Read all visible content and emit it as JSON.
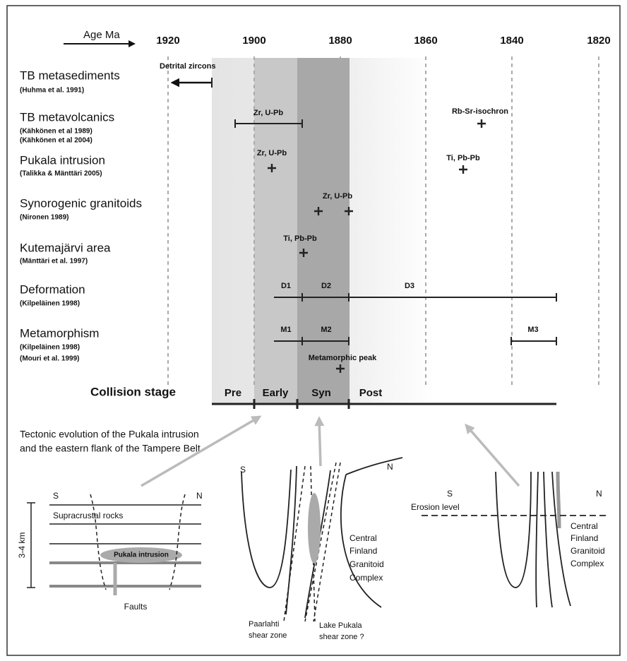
{
  "header": {
    "axis_label": "Age Ma",
    "ticks": [
      1920,
      1900,
      1880,
      1860,
      1840,
      1820
    ]
  },
  "rows": [
    {
      "title": "TB metasediments",
      "refs": [
        "(Huhma et al. 1991)"
      ]
    },
    {
      "title": "TB metavolcanics",
      "refs": [
        "(Kähkönen et al 1989)",
        "(Kähkönen et al 2004)"
      ]
    },
    {
      "title": "Pukala intrusion",
      "refs": [
        "(Talikka & Mänttäri 2005)"
      ]
    },
    {
      "title": "Synorogenic granitoids",
      "refs": [
        "(Nironen 1989)"
      ]
    },
    {
      "title": "Kutemajärvi area",
      "refs": [
        "(Mänttäri et al. 1997)"
      ]
    },
    {
      "title": "Deformation",
      "refs": [
        "(Kilpeläinen 1998)"
      ]
    },
    {
      "title": "Metamorphism",
      "refs": [
        "(Kilpeläinen 1998)",
        "(Mouri et al. 1999)"
      ]
    }
  ],
  "annotations": {
    "detrital_zircons": "Detrital zircons",
    "zr_upb_1": "Zr, U-Pb",
    "rb_sr": "Rb-Sr-isochron",
    "zr_upb_2": "Zr, U-Pb",
    "ti_pbpb_1": "Ti, Pb-Pb",
    "zr_upb_3": "Zr, U-Pb",
    "ti_pbpb_2": "Ti, Pb-Pb",
    "d1": "D1",
    "d2": "D2",
    "d3": "D3",
    "m1": "M1",
    "m2": "M2",
    "m3": "M3",
    "metamorphic_peak": "Metamorphic peak"
  },
  "collision": {
    "title": "Collision stage",
    "stages": [
      "Pre",
      "Early",
      "Syn",
      "Post"
    ]
  },
  "tectonic": {
    "title": [
      "Tectonic evolution of the Pukala intrusion",
      "and the eastern flank of the Tampere Belt"
    ]
  },
  "panels": [
    {
      "s": "S",
      "n": "N",
      "labels": [
        "Supracrustal rocks",
        "Pukala intrusion",
        "3-4 km",
        "Faults"
      ]
    },
    {
      "s": "S",
      "n": "N",
      "labels": [
        "Central",
        "Finland",
        "Granitoid",
        "Complex",
        "Paarlahti",
        "shear zone",
        "Lake Pukala",
        "shear zone ?"
      ]
    },
    {
      "s": "S",
      "n": "N",
      "labels": [
        "Erosion level",
        "Central",
        "Finland",
        "Granitoid",
        "Complex"
      ]
    }
  ]
}
